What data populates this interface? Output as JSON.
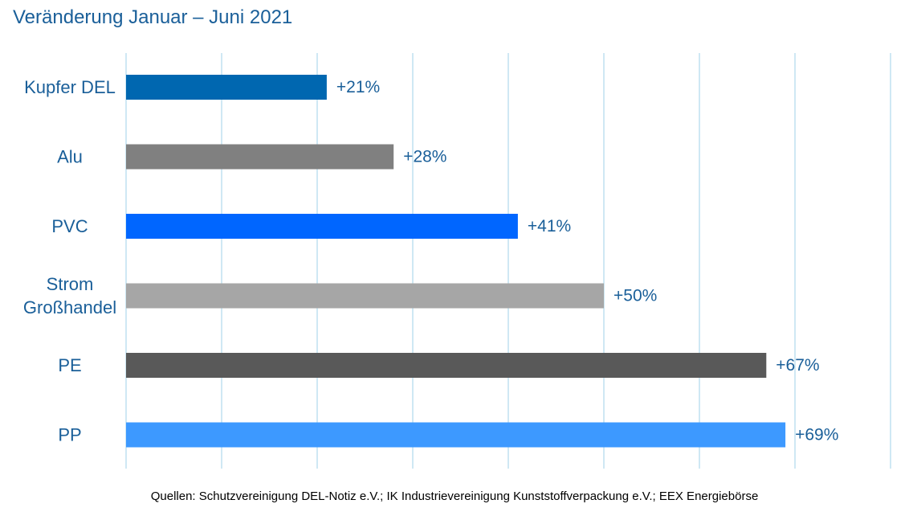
{
  "title": "Veränderung Januar – Juni 2021",
  "source": "Quellen: Schutzvereinigung DEL-Notiz e.V.; IK Industrievereinigung Kunststoffverpackung e.V.; EEX Energiebörse",
  "colors": {
    "text": "#1a5f99",
    "grid": "#bfe1f0"
  },
  "chart_data": {
    "type": "bar",
    "orientation": "horizontal",
    "categories": [
      "Kupfer DEL",
      "Alu",
      "PVC",
      "Strom Großhandel",
      "PE",
      "PP"
    ],
    "category_lines": [
      [
        "Kupfer DEL"
      ],
      [
        "Alu"
      ],
      [
        "PVC"
      ],
      [
        "Strom",
        "Großhandel"
      ],
      [
        "PE"
      ],
      [
        "PP"
      ]
    ],
    "values": [
      21,
      28,
      41,
      50,
      67,
      69
    ],
    "data_labels": [
      "+21%",
      "+28%",
      "+41%",
      "+50%",
      "+67%",
      "+69%"
    ],
    "bar_colors": [
      "#0067b0",
      "#808080",
      "#0066ff",
      "#a6a6a6",
      "#595959",
      "#3d99ff"
    ],
    "xlim": [
      0,
      80
    ],
    "grid_step": 10,
    "grid": true,
    "tick_labels_shown": false,
    "legend": "none"
  }
}
